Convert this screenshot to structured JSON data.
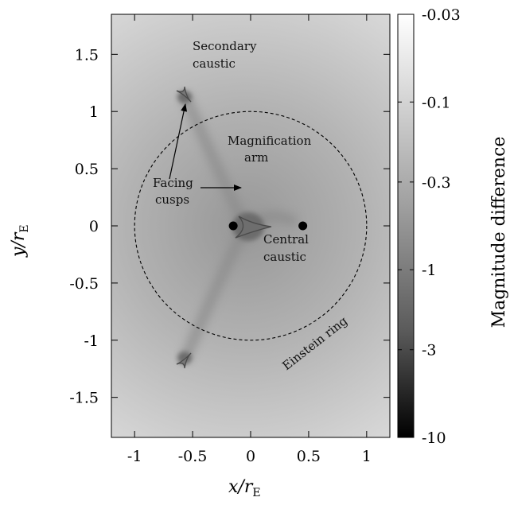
{
  "chart_data": {
    "type": "heatmap",
    "title": "",
    "xlabel": {
      "main": "x/r",
      "sub": "E"
    },
    "ylabel": {
      "main": "y/r",
      "sub": "E"
    },
    "xlim": [
      -1.2,
      1.2
    ],
    "ylim": [
      -1.85,
      1.85
    ],
    "x_ticks": [
      {
        "value": -1,
        "label": "-1"
      },
      {
        "value": -0.5,
        "label": "-0.5"
      },
      {
        "value": 0,
        "label": "0"
      },
      {
        "value": 0.5,
        "label": "0.5"
      },
      {
        "value": 1,
        "label": "1"
      }
    ],
    "y_ticks": [
      {
        "value": 1.5,
        "label": "1.5"
      },
      {
        "value": 1,
        "label": "1"
      },
      {
        "value": 0.5,
        "label": "0.5"
      },
      {
        "value": 0,
        "label": "0"
      },
      {
        "value": -0.5,
        "label": "-0.5"
      },
      {
        "value": -1,
        "label": "-1"
      },
      {
        "value": -1.5,
        "label": "-1.5"
      }
    ],
    "colorbar": {
      "label": "Magnitude difference",
      "scale": "log",
      "range": [
        -10,
        -0.03
      ],
      "ticks": [
        {
          "value": -0.03,
          "label": "-0.03"
        },
        {
          "value": -0.1,
          "label": "-0.1"
        },
        {
          "value": -0.3,
          "label": "-0.3"
        },
        {
          "value": -1,
          "label": "-1"
        },
        {
          "value": -3,
          "label": "-3"
        },
        {
          "value": -10,
          "label": "-10"
        }
      ],
      "colors": [
        "#000000",
        "#ffffff"
      ]
    },
    "lens_masses": [
      {
        "x": -0.15,
        "y": 0
      },
      {
        "x": 0.45,
        "y": 0
      }
    ],
    "einstein_ring": {
      "cx": 0,
      "cy": 0,
      "r": 1
    },
    "caustics": [
      {
        "name": "central",
        "x": 0.02,
        "y": 0
      },
      {
        "name": "secondary-upper",
        "x": -0.58,
        "y": 1.12
      },
      {
        "name": "secondary-lower",
        "x": -0.58,
        "y": -1.12
      }
    ],
    "annotations": {
      "secondary_caustic": [
        "Secondary",
        "caustic"
      ],
      "magnification_arm": [
        "Magnification",
        "arm"
      ],
      "facing_cusps": [
        "Facing",
        "cusps"
      ],
      "central_caustic": [
        "Central",
        "caustic"
      ],
      "einstein_ring": "Einstein ring"
    }
  }
}
